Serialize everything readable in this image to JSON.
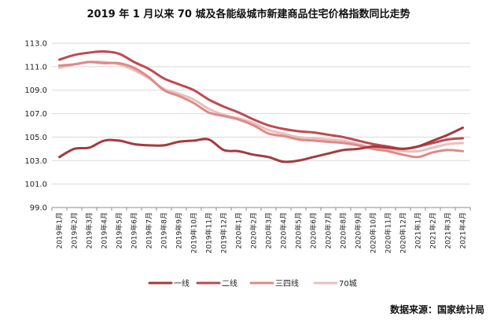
{
  "chart_data": {
    "type": "line",
    "title": "2019 年 1 月以来 70 城及各能级城市新建商品住宅价格指数同比走势",
    "source": "数据来源：国家统计局",
    "xlabel": "",
    "ylabel": "",
    "ylim": [
      99.0,
      113.0
    ],
    "yticks": [
      "99.0",
      "101.0",
      "103.0",
      "105.0",
      "107.0",
      "109.0",
      "111.0",
      "113.0"
    ],
    "grid": true,
    "legend_position": "bottom",
    "categories": [
      "2019年1月",
      "2019年2月",
      "2019年3月",
      "2019年4月",
      "2019年5月",
      "2019年6月",
      "2019年7月",
      "2019年8月",
      "2019年9月",
      "2019年10月",
      "2019年11月",
      "2019年12月",
      "2020年1月",
      "2020年2月",
      "2020年3月",
      "2020年4月",
      "2020年5月",
      "2020年6月",
      "2020年7月",
      "2020年8月",
      "2020年9月",
      "2020年10月",
      "2020年11月",
      "2020年12月",
      "2021年1月",
      "2021年2月",
      "2021年3月",
      "2021年4月"
    ],
    "series": [
      {
        "name": "一线",
        "color": "#a23b3e",
        "values": [
          103.3,
          104.0,
          104.1,
          104.7,
          104.7,
          104.4,
          104.3,
          104.3,
          104.6,
          104.7,
          104.8,
          103.9,
          103.8,
          103.5,
          103.3,
          102.9,
          103.0,
          103.3,
          103.6,
          103.9,
          104.0,
          104.2,
          104.1,
          104.0,
          104.2,
          104.7,
          105.2,
          105.8
        ]
      },
      {
        "name": "二线",
        "color": "#c0494f",
        "values": [
          111.6,
          112.0,
          112.2,
          112.3,
          112.1,
          111.4,
          110.8,
          110.0,
          109.5,
          109.0,
          108.2,
          107.6,
          107.1,
          106.5,
          106.0,
          105.7,
          105.5,
          105.4,
          105.2,
          105.0,
          104.7,
          104.4,
          104.2,
          104.0,
          104.2,
          104.5,
          104.8,
          104.9
        ]
      },
      {
        "name": "三四线",
        "color": "#dd8a87",
        "values": [
          111.1,
          111.2,
          111.4,
          111.3,
          111.3,
          110.9,
          110.1,
          109.0,
          108.5,
          107.9,
          107.1,
          106.8,
          106.5,
          106.0,
          105.3,
          105.1,
          104.8,
          104.7,
          104.6,
          104.5,
          104.3,
          104.0,
          103.8,
          103.5,
          103.3,
          103.7,
          103.9,
          103.8
        ]
      },
      {
        "name": "70城",
        "color": "#e9bfbe",
        "values": [
          110.9,
          111.2,
          111.4,
          111.4,
          111.2,
          110.7,
          110.0,
          109.1,
          108.7,
          108.2,
          107.4,
          106.9,
          106.6,
          106.2,
          105.6,
          105.3,
          105.0,
          104.9,
          104.8,
          104.7,
          104.4,
          104.1,
          104.0,
          103.8,
          103.8,
          104.1,
          104.4,
          104.5
        ]
      }
    ]
  }
}
